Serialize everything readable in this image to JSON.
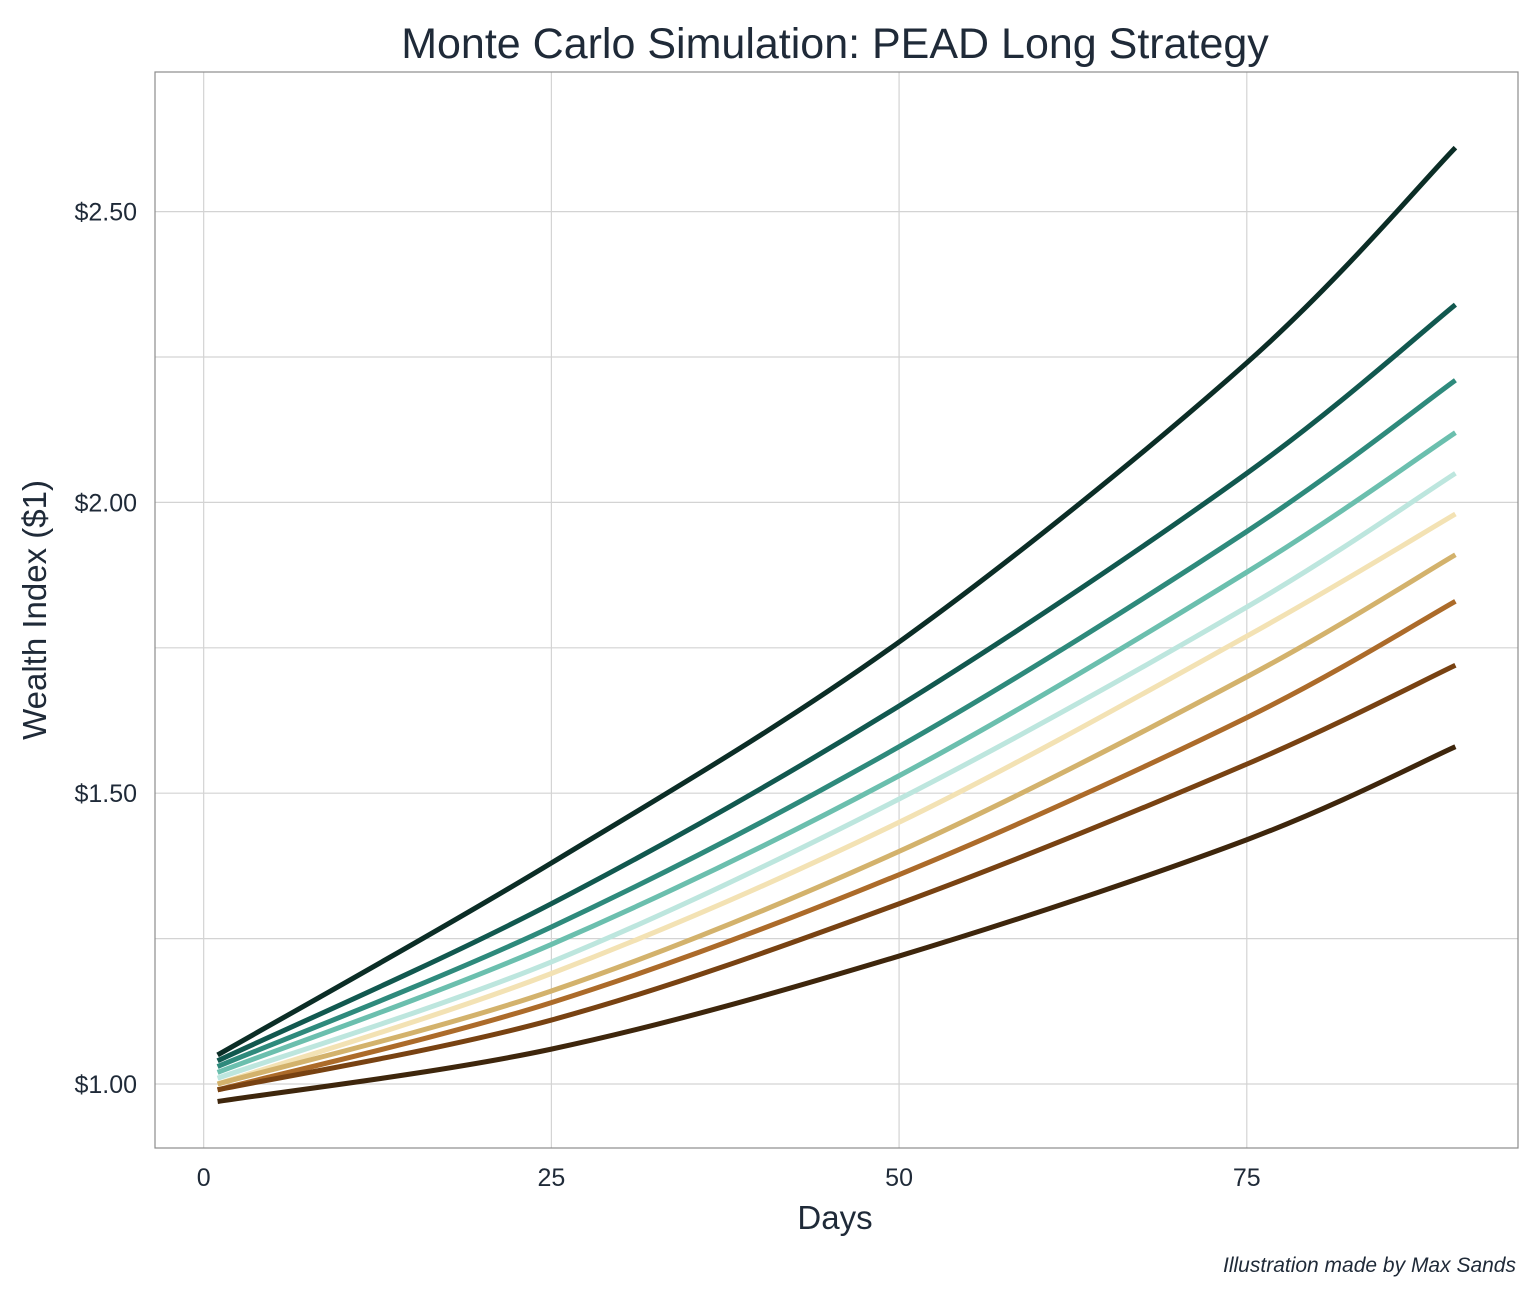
{
  "chart_data": {
    "type": "line",
    "title": "Monte Carlo Simulation: PEAD Long Strategy",
    "xlabel": "Days",
    "ylabel": "Wealth Index ($1)",
    "caption": "Illustration made by Max Sands",
    "xlim": [
      -3.5,
      94.5
    ],
    "ylim": [
      0.89,
      2.74
    ],
    "x_ticks": [
      {
        "value": 0,
        "label": "0"
      },
      {
        "value": 25,
        "label": "25"
      },
      {
        "value": 50,
        "label": "50"
      },
      {
        "value": 75,
        "label": "75"
      }
    ],
    "x_minor_grid": [],
    "y_ticks": [
      {
        "value": 1.0,
        "label": "$1.00"
      },
      {
        "value": 1.5,
        "label": "$1.50"
      },
      {
        "value": 2.0,
        "label": "$2.00"
      },
      {
        "value": 2.5,
        "label": "$2.50"
      }
    ],
    "y_minor_grid": [
      1.25,
      1.75,
      2.25
    ],
    "grid": true,
    "legend": "none",
    "series": [
      {
        "color": "#0b2d26",
        "x": [
          1,
          25,
          50,
          75,
          90
        ],
        "y": [
          1.05,
          1.38,
          1.76,
          2.24,
          2.61
        ]
      },
      {
        "color": "#11584f",
        "x": [
          1,
          25,
          50,
          75,
          90
        ],
        "y": [
          1.04,
          1.31,
          1.65,
          2.05,
          2.34
        ]
      },
      {
        "color": "#2e8a7c",
        "x": [
          1,
          25,
          50,
          75,
          90
        ],
        "y": [
          1.03,
          1.27,
          1.58,
          1.95,
          2.21
        ]
      },
      {
        "color": "#6bbfae",
        "x": [
          1,
          25,
          50,
          75,
          90
        ],
        "y": [
          1.02,
          1.24,
          1.53,
          1.88,
          2.12
        ]
      },
      {
        "color": "#bde6de",
        "x": [
          1,
          25,
          50,
          75,
          90
        ],
        "y": [
          1.01,
          1.21,
          1.49,
          1.82,
          2.05
        ]
      },
      {
        "color": "#f3e2b4",
        "x": [
          1,
          25,
          50,
          75,
          90
        ],
        "y": [
          1.0,
          1.19,
          1.45,
          1.77,
          1.98
        ]
      },
      {
        "color": "#d3b26c",
        "x": [
          1,
          25,
          50,
          75,
          90
        ],
        "y": [
          1.0,
          1.16,
          1.4,
          1.7,
          1.91
        ]
      },
      {
        "color": "#ac6b2a",
        "x": [
          1,
          25,
          50,
          75,
          90
        ],
        "y": [
          0.99,
          1.14,
          1.36,
          1.63,
          1.83
        ]
      },
      {
        "color": "#784212",
        "x": [
          1,
          25,
          50,
          75,
          90
        ],
        "y": [
          0.99,
          1.11,
          1.31,
          1.55,
          1.72
        ]
      },
      {
        "color": "#3e260c",
        "x": [
          1,
          25,
          50,
          75,
          90
        ],
        "y": [
          0.97,
          1.06,
          1.22,
          1.42,
          1.58
        ]
      }
    ]
  }
}
